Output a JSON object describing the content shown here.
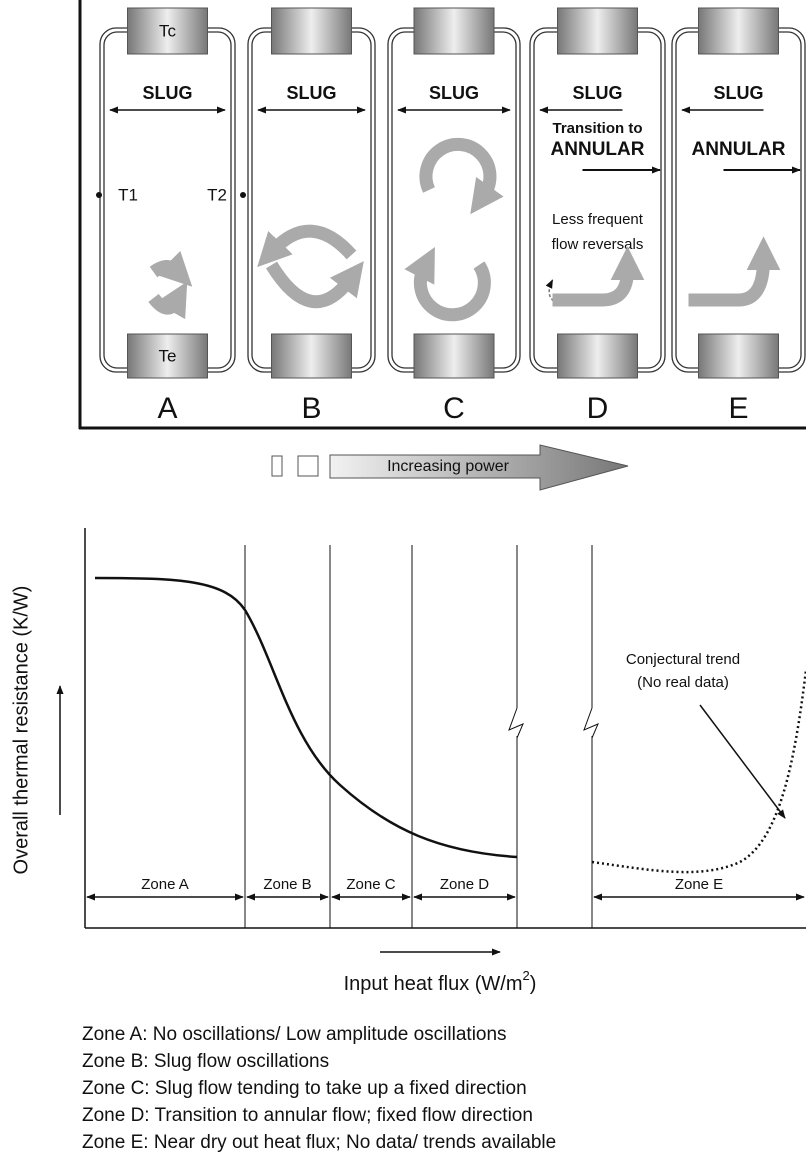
{
  "loops": [
    {
      "letter": "A",
      "slug": "SLUG",
      "top_block": "Tc",
      "bottom_block": "Te",
      "left_probe": "T1",
      "right_probe": "T2"
    },
    {
      "letter": "B",
      "slug": "SLUG"
    },
    {
      "letter": "C",
      "slug": "SLUG"
    },
    {
      "letter": "D",
      "slug": "SLUG",
      "regime": [
        "Transition to",
        "ANNULAR"
      ],
      "note": [
        "Less frequent",
        "flow reversals"
      ]
    },
    {
      "letter": "E",
      "slug": "SLUG",
      "regime": [
        "ANNULAR"
      ]
    }
  ],
  "power_arrow": "Increasing power",
  "graph": {
    "y_label": "Overall thermal resistance (K/W)",
    "x_label": {
      "text": "Input heat flux (W/m",
      "sup": "2",
      "close": ")"
    },
    "zones": [
      "Zone A",
      "Zone B",
      "Zone C",
      "Zone D",
      "Zone E"
    ],
    "annotation": [
      "Conjectural trend",
      "(No real data)"
    ]
  },
  "legend": [
    "Zone A: No oscillations/ Low amplitude oscillations",
    "Zone B: Slug flow oscillations",
    "Zone C: Slug flow tending to take up a fixed direction",
    "Zone D: Transition to annular flow; fixed flow direction",
    "Zone E: Near dry out heat flux; No data/ trends available"
  ]
}
